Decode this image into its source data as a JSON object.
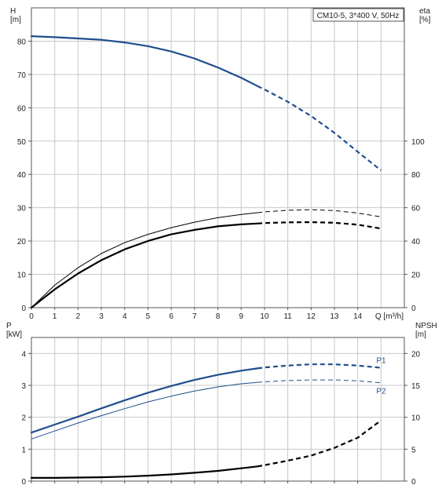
{
  "chart_data": [
    {
      "type": "line",
      "title": "",
      "legend_box": "CM10-5, 3*400 V, 50Hz",
      "legend_position": "top-right",
      "xlabel": "Q [m³/h]",
      "ylabel_left": "H\n[m]",
      "ylabel_right": "eta\n[%]",
      "xlim": [
        0,
        16
      ],
      "ylim_left": [
        0,
        90
      ],
      "ylim_right": [
        0,
        180
      ],
      "xticks": [
        "0",
        "1",
        "2",
        "3",
        "4",
        "5",
        "6",
        "7",
        "8",
        "9",
        "10",
        "11",
        "12",
        "13",
        "14"
      ],
      "yticks_left": [
        "0",
        "10",
        "20",
        "30",
        "40",
        "50",
        "60",
        "70",
        "80"
      ],
      "yticks_right": [
        "0",
        "20",
        "40",
        "60",
        "80",
        "100"
      ],
      "grid": true,
      "series": [
        {
          "key": "H",
          "axis": "left",
          "color": "#1f4e8c",
          "weight": "bold",
          "x": [
            0,
            1,
            2,
            3,
            4,
            5,
            6,
            7,
            8,
            9,
            9.7
          ],
          "values": [
            81.5,
            81.2,
            80.8,
            80.4,
            79.6,
            78.5,
            76.9,
            74.8,
            72.1,
            69.0,
            66.5
          ],
          "dashed_x": [
            9.7,
            10,
            11,
            12,
            13,
            14,
            15
          ],
          "dashed_values": [
            66.5,
            65.5,
            61.8,
            57.5,
            52.5,
            46.8,
            41.2
          ]
        },
        {
          "key": "eta1",
          "axis": "right",
          "color": "#000000",
          "weight": "thin",
          "x": [
            0,
            1,
            2,
            3,
            4,
            5,
            6,
            7,
            8,
            9,
            9.7
          ],
          "values": [
            0,
            13.5,
            24,
            32.5,
            39,
            44,
            48,
            51.3,
            54,
            56,
            57
          ],
          "dashed_x": [
            9.7,
            10,
            11,
            12,
            13,
            14,
            15
          ],
          "dashed_values": [
            57,
            57.5,
            58.5,
            58.8,
            58.3,
            56.8,
            54.5
          ]
        },
        {
          "key": "eta2",
          "axis": "right",
          "color": "#000000",
          "weight": "bold",
          "x": [
            0,
            1,
            2,
            3,
            4,
            5,
            6,
            7,
            8,
            9,
            9.7
          ],
          "values": [
            0,
            11,
            20.5,
            28.5,
            35,
            40,
            44,
            46.7,
            48.8,
            50,
            50.5
          ],
          "dashed_x": [
            9.7,
            10,
            11,
            12,
            13,
            14,
            15
          ],
          "dashed_values": [
            50.5,
            50.8,
            51.2,
            51.3,
            51,
            49.8,
            47.5
          ]
        }
      ]
    },
    {
      "type": "line",
      "title": "",
      "xlim": [
        0,
        16
      ],
      "ylabel_left": "P\n[kW]",
      "ylabel_right": "NPSH\n[m]",
      "ylim_left": [
        0,
        4.5
      ],
      "ylim_right": [
        0,
        22.5
      ],
      "yticks_left": [
        "0",
        "1",
        "2",
        "3",
        "4"
      ],
      "yticks_right": [
        "0",
        "5",
        "10",
        "15",
        "20"
      ],
      "grid": true,
      "series": [
        {
          "name": "P1",
          "axis": "left",
          "color": "#1f4e8c",
          "weight": "bold",
          "x": [
            0,
            1,
            2,
            3,
            4,
            5,
            6,
            7,
            8,
            9,
            9.7
          ],
          "values": [
            1.52,
            1.77,
            2.02,
            2.28,
            2.53,
            2.77,
            2.98,
            3.17,
            3.33,
            3.46,
            3.53
          ],
          "dashed_x": [
            9.7,
            10,
            11,
            12,
            13,
            14,
            15
          ],
          "dashed_values": [
            3.53,
            3.56,
            3.62,
            3.66,
            3.66,
            3.62,
            3.55
          ]
        },
        {
          "name": "P2",
          "axis": "left",
          "color": "#1f4e8c",
          "weight": "thin",
          "x": [
            0,
            1,
            2,
            3,
            4,
            5,
            6,
            7,
            8,
            9,
            9.7
          ],
          "values": [
            1.32,
            1.57,
            1.82,
            2.05,
            2.27,
            2.48,
            2.66,
            2.82,
            2.95,
            3.05,
            3.09
          ],
          "dashed_x": [
            9.7,
            10,
            11,
            12,
            13,
            14,
            15
          ],
          "dashed_values": [
            3.09,
            3.11,
            3.15,
            3.17,
            3.17,
            3.14,
            3.08
          ]
        },
        {
          "key": "NPSH",
          "axis": "right",
          "color": "#000000",
          "weight": "bold",
          "x": [
            0,
            1,
            2,
            3,
            4,
            5,
            6,
            7,
            8,
            9,
            9.7
          ],
          "values": [
            0.5,
            0.5,
            0.55,
            0.6,
            0.7,
            0.85,
            1.05,
            1.3,
            1.6,
            2.0,
            2.3
          ],
          "dashed_x": [
            9.7,
            10,
            11,
            12,
            13,
            14,
            15
          ],
          "dashed_values": [
            2.3,
            2.5,
            3.2,
            4.0,
            5.2,
            6.8,
            9.5
          ]
        }
      ]
    }
  ]
}
